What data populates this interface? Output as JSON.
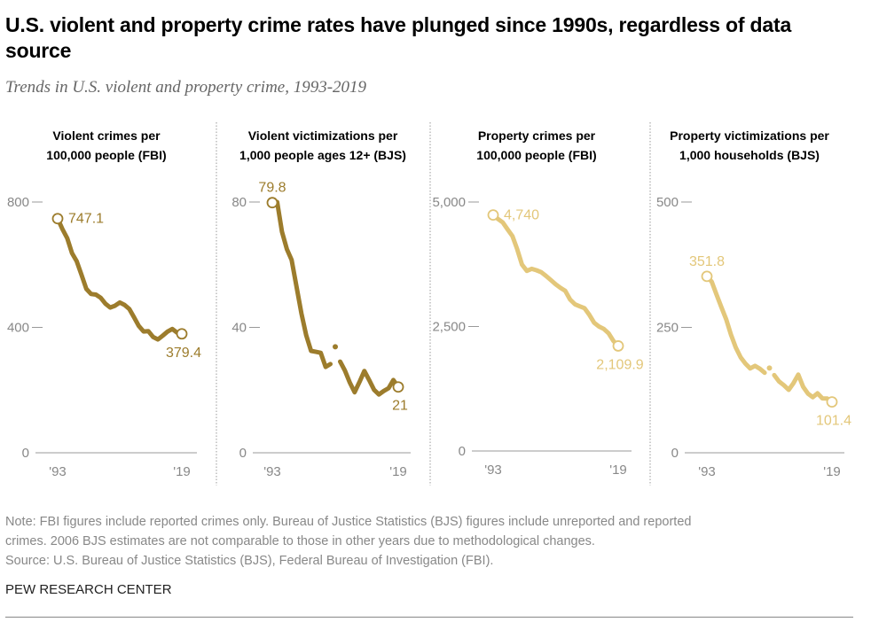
{
  "header": {
    "title": "U.S. violent and property crime rates have plunged since 1990s, regardless of data source",
    "subtitle": "Trends in U.S. violent and property crime, 1993-2019"
  },
  "footer": {
    "note_line1": "Note: FBI figures include reported crimes only. Bureau of Justice Statistics (BJS) figures include unreported and reported",
    "note_line2": "crimes. 2006 BJS estimates are not comparable to those in other years due to methodological changes.",
    "source": "Source: U.S. Bureau of Justice Statistics (BJS), Federal Bureau of Investigation (FBI).",
    "brand": "PEW RESEARCH CENTER"
  },
  "colors": {
    "violent": "#9c7c2c",
    "property": "#e3c77a",
    "axis": "#999999",
    "tick_text": "#888888",
    "divider": "#aaaaaa"
  },
  "chart_data": [
    {
      "type": "line",
      "title": "Violent crimes per 100,000 people (FBI)",
      "title_line1": "Violent crimes per",
      "title_line2": "100,000 people (FBI)",
      "x": [
        1993,
        1994,
        1995,
        1996,
        1997,
        1998,
        1999,
        2000,
        2001,
        2002,
        2003,
        2004,
        2005,
        2006,
        2007,
        2008,
        2009,
        2010,
        2011,
        2012,
        2013,
        2014,
        2015,
        2016,
        2017,
        2018,
        2019
      ],
      "values": [
        747.1,
        713.6,
        684.5,
        636.6,
        611.0,
        567.6,
        523.0,
        506.5,
        504.5,
        494.4,
        475.8,
        463.2,
        469.0,
        479.3,
        471.8,
        458.6,
        431.9,
        404.5,
        387.1,
        387.8,
        369.1,
        361.6,
        373.7,
        386.3,
        394.9,
        383.4,
        379.4
      ],
      "estimated": true,
      "labeled_points": [
        {
          "year": 1993,
          "label": "747.1"
        },
        {
          "year": 2019,
          "label": "379.4"
        }
      ],
      "yticks": [
        0,
        400,
        800
      ],
      "ytick_labels": [
        "0",
        "400",
        "800"
      ],
      "ylim": [
        0,
        800
      ],
      "xtick_labels": [
        "'93",
        "'19"
      ],
      "series_color": "violent",
      "gap_years": []
    },
    {
      "type": "line",
      "title": "Violent victimizations per 1,000 people ages 12+ (BJS)",
      "title_line1": "Violent victimizations per",
      "title_line2": "1,000 people ages 12+ (BJS)",
      "x": [
        1993,
        1994,
        1995,
        1996,
        1997,
        1998,
        1999,
        2000,
        2001,
        2002,
        2003,
        2004,
        2005,
        2006,
        2007,
        2008,
        2009,
        2010,
        2011,
        2012,
        2013,
        2014,
        2015,
        2016,
        2017,
        2018,
        2019
      ],
      "values": [
        79.8,
        80.0,
        70.5,
        65.0,
        61.5,
        53.0,
        44.5,
        37.5,
        32.5,
        32.2,
        31.9,
        27.4,
        28.3,
        33.8,
        29.1,
        26.2,
        22.4,
        19.3,
        22.6,
        26.1,
        23.2,
        20.1,
        18.6,
        19.7,
        20.6,
        23.2,
        21.0
      ],
      "estimated": true,
      "labeled_points": [
        {
          "year": 1993,
          "label": "79.8"
        },
        {
          "year": 2019,
          "label": "21"
        }
      ],
      "yticks": [
        0,
        40,
        80
      ],
      "ytick_labels": [
        "0",
        "40",
        "80"
      ],
      "ylim": [
        0,
        80
      ],
      "xtick_labels": [
        "'93",
        "'19"
      ],
      "series_color": "violent",
      "gap_years": [
        2006
      ]
    },
    {
      "type": "line",
      "title": "Property crimes per 100,000 people (FBI)",
      "title_line1": "Property crimes per",
      "title_line2": "100,000 people (FBI)",
      "x": [
        1993,
        1994,
        1995,
        1996,
        1997,
        1998,
        1999,
        2000,
        2001,
        2002,
        2003,
        2004,
        2005,
        2006,
        2007,
        2008,
        2009,
        2010,
        2011,
        2012,
        2013,
        2014,
        2015,
        2016,
        2017,
        2018,
        2019
      ],
      "values": [
        4740.0,
        4660.2,
        4590.5,
        4451.0,
        4316.3,
        4052.5,
        3743.6,
        3618.3,
        3658.1,
        3630.6,
        3591.2,
        3514.1,
        3431.5,
        3346.6,
        3276.4,
        3214.6,
        3041.3,
        2945.9,
        2905.4,
        2868.0,
        2733.6,
        2574.1,
        2500.5,
        2451.6,
        2362.9,
        2209.8,
        2109.9
      ],
      "estimated": true,
      "labeled_points": [
        {
          "year": 1993,
          "label": "4,740"
        },
        {
          "year": 2019,
          "label": "2,109.9"
        }
      ],
      "yticks": [
        0,
        2500,
        5000
      ],
      "ytick_labels": [
        "0",
        "2,500",
        "5,000"
      ],
      "ylim": [
        0,
        5000
      ],
      "xtick_labels": [
        "'93",
        "'19"
      ],
      "series_color": "property",
      "gap_years": []
    },
    {
      "type": "line",
      "title": "Property victimizations per 1,000 households (BJS)",
      "title_line1": "Property victimizations per",
      "title_line2": "1,000 households (BJS)",
      "x": [
        1993,
        1994,
        1995,
        1996,
        1997,
        1998,
        1999,
        2000,
        2001,
        2002,
        2003,
        2004,
        2005,
        2006,
        2007,
        2008,
        2009,
        2010,
        2011,
        2012,
        2013,
        2014,
        2015,
        2016,
        2017,
        2018,
        2019
      ],
      "values": [
        351.8,
        341.2,
        315.5,
        290.3,
        266.3,
        235.7,
        210.1,
        190.4,
        177.7,
        168.2,
        173.4,
        167.5,
        159.5,
        169.0,
        154.8,
        142.3,
        134.7,
        125.4,
        138.8,
        155.8,
        131.4,
        118.1,
        110.7,
        118.6,
        108.4,
        108.2,
        101.4
      ],
      "estimated": true,
      "labeled_points": [
        {
          "year": 1993,
          "label": "351.8"
        },
        {
          "year": 2019,
          "label": "101.4"
        }
      ],
      "yticks": [
        0,
        250,
        500
      ],
      "ytick_labels": [
        "0",
        "250",
        "500"
      ],
      "ylim": [
        0,
        500
      ],
      "xtick_labels": [
        "'93",
        "'19"
      ],
      "series_color": "property",
      "gap_years": [
        2006
      ]
    }
  ]
}
